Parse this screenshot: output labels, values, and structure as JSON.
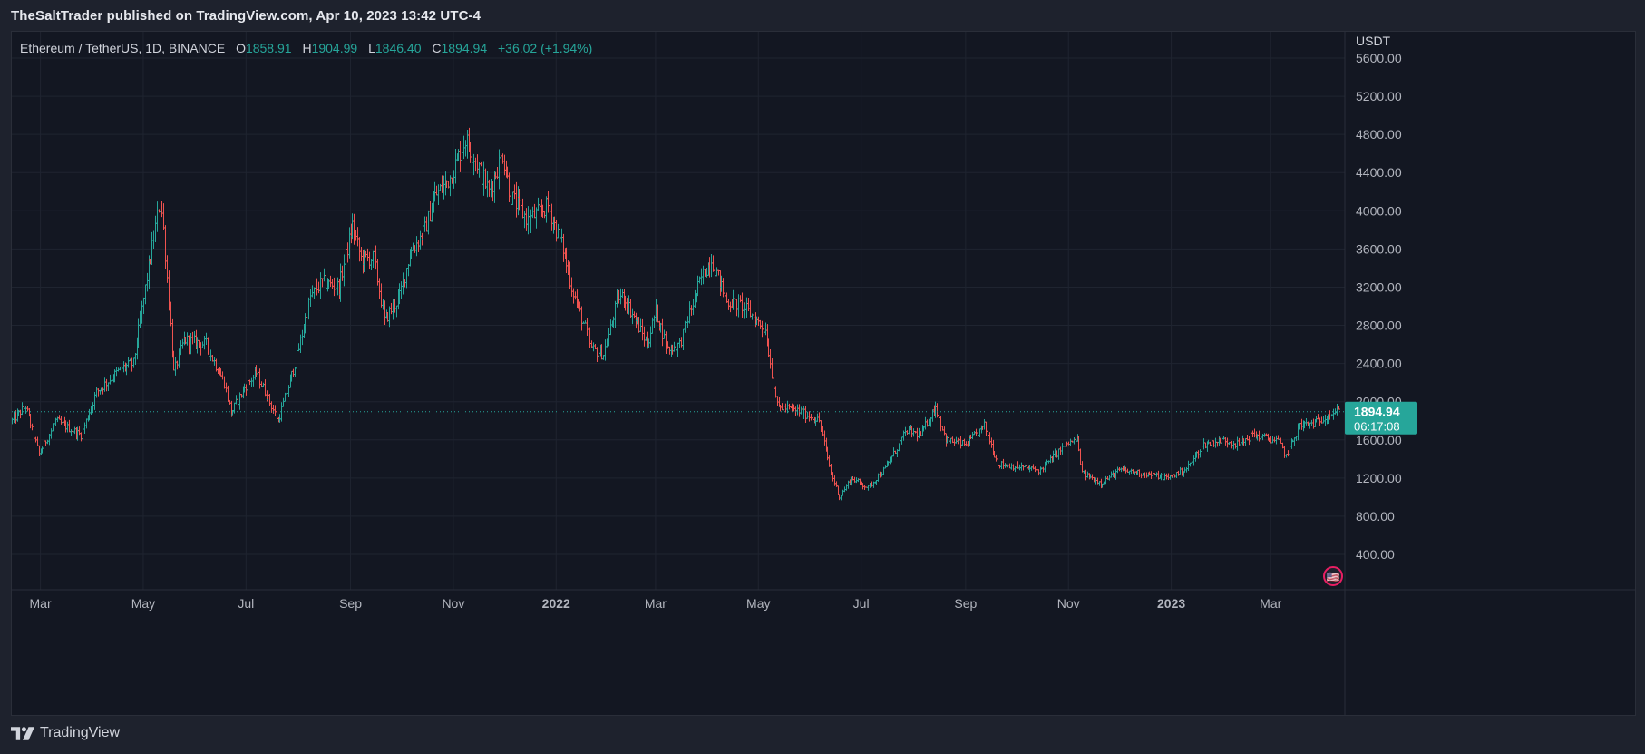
{
  "header": {
    "published_text": "TheSaltTrader published on TradingView.com, Apr 10, 2023 13:42 UTC-4"
  },
  "legend": {
    "symbol": "Ethereum / TetherUS, 1D, BINANCE",
    "open_label": "O",
    "open_value": "1858.91",
    "high_label": "H",
    "high_value": "1904.99",
    "low_label": "L",
    "low_value": "1846.40",
    "close_label": "C",
    "close_value": "1894.94",
    "change": "+36.02 (+1.94%)"
  },
  "footer": {
    "brand": "TradingView"
  },
  "colors": {
    "background": "#131722",
    "up": "#26a69a",
    "down": "#ef5350",
    "grid": "#1f2430",
    "text": "#b2b5be",
    "price_tag": "#26a69a"
  },
  "chart_data": {
    "type": "ohlc",
    "currency": "USDT",
    "price_tag": {
      "value": "1894.94",
      "countdown": "06:17:08"
    },
    "last_price": 1894.94,
    "ylim": [
      0,
      5800
    ],
    "y_ticks": [
      "5600.00",
      "5200.00",
      "4800.00",
      "4400.00",
      "4000.00",
      "3600.00",
      "3200.00",
      "2800.00",
      "2400.00",
      "2000.00",
      "1600.00",
      "1200.00",
      "800.00",
      "400.00"
    ],
    "y_tick_values": [
      5600,
      5200,
      4800,
      4400,
      4000,
      3600,
      3200,
      2800,
      2400,
      2000,
      1600,
      1200,
      800,
      400
    ],
    "x_ticks": [
      {
        "label": "Mar",
        "date": "2021-03-01",
        "bold": false
      },
      {
        "label": "May",
        "date": "2021-05-01",
        "bold": false
      },
      {
        "label": "Jul",
        "date": "2021-07-01",
        "bold": false
      },
      {
        "label": "Sep",
        "date": "2021-09-01",
        "bold": false
      },
      {
        "label": "Nov",
        "date": "2021-11-01",
        "bold": false
      },
      {
        "label": "2022",
        "date": "2022-01-01",
        "bold": true
      },
      {
        "label": "Mar",
        "date": "2022-03-01",
        "bold": false
      },
      {
        "label": "May",
        "date": "2022-05-01",
        "bold": false
      },
      {
        "label": "Jul",
        "date": "2022-07-01",
        "bold": false
      },
      {
        "label": "Sep",
        "date": "2022-09-01",
        "bold": false
      },
      {
        "label": "Nov",
        "date": "2022-11-01",
        "bold": false
      },
      {
        "label": "2023",
        "date": "2023-01-01",
        "bold": true
      },
      {
        "label": "Mar",
        "date": "2023-03-01",
        "bold": false
      }
    ],
    "x_range": [
      "2021-02-12",
      "2023-04-14"
    ],
    "price_path": [
      [
        "2021-02-12",
        1800
      ],
      [
        "2021-02-20",
        1950
      ],
      [
        "2021-02-28",
        1450
      ],
      [
        "2021-03-10",
        1800
      ],
      [
        "2021-03-25",
        1650
      ],
      [
        "2021-04-03",
        2100
      ],
      [
        "2021-04-18",
        2350
      ],
      [
        "2021-04-25",
        2400
      ],
      [
        "2021-05-03",
        3300
      ],
      [
        "2021-05-11",
        4150
      ],
      [
        "2021-05-13",
        3800
      ],
      [
        "2021-05-19",
        2300
      ],
      [
        "2021-05-25",
        2650
      ],
      [
        "2021-06-07",
        2600
      ],
      [
        "2021-06-18",
        2200
      ],
      [
        "2021-06-22",
        1880
      ],
      [
        "2021-06-30",
        2150
      ],
      [
        "2021-07-07",
        2300
      ],
      [
        "2021-07-20",
        1800
      ],
      [
        "2021-07-30",
        2400
      ],
      [
        "2021-08-08",
        3100
      ],
      [
        "2021-08-15",
        3250
      ],
      [
        "2021-08-25",
        3200
      ],
      [
        "2021-09-02",
        3850
      ],
      [
        "2021-09-07",
        3500
      ],
      [
        "2021-09-15",
        3500
      ],
      [
        "2021-09-21",
        2850
      ],
      [
        "2021-09-30",
        3100
      ],
      [
        "2021-10-06",
        3550
      ],
      [
        "2021-10-15",
        3800
      ],
      [
        "2021-10-21",
        4150
      ],
      [
        "2021-10-30",
        4350
      ],
      [
        "2021-11-08",
        4750
      ],
      [
        "2021-11-15",
        4500
      ],
      [
        "2021-11-22",
        4200
      ],
      [
        "2021-11-30",
        4600
      ],
      [
        "2021-12-05",
        4150
      ],
      [
        "2021-12-15",
        3900
      ],
      [
        "2021-12-27",
        4050
      ],
      [
        "2022-01-05",
        3600
      ],
      [
        "2022-01-10",
        3200
      ],
      [
        "2022-01-22",
        2550
      ],
      [
        "2022-01-29",
        2500
      ],
      [
        "2022-02-07",
        3100
      ],
      [
        "2022-02-10",
        3100
      ],
      [
        "2022-02-24",
        2600
      ],
      [
        "2022-03-01",
        2950
      ],
      [
        "2022-03-08",
        2550
      ],
      [
        "2022-03-15",
        2600
      ],
      [
        "2022-03-28",
        3300
      ],
      [
        "2022-04-03",
        3500
      ],
      [
        "2022-04-12",
        3050
      ],
      [
        "2022-04-22",
        3000
      ],
      [
        "2022-05-05",
        2750
      ],
      [
        "2022-05-12",
        1950
      ],
      [
        "2022-05-25",
        1900
      ],
      [
        "2022-06-06",
        1800
      ],
      [
        "2022-06-13",
        1250
      ],
      [
        "2022-06-18",
        1000
      ],
      [
        "2022-06-25",
        1200
      ],
      [
        "2022-07-05",
        1100
      ],
      [
        "2022-07-15",
        1300
      ],
      [
        "2022-07-28",
        1700
      ],
      [
        "2022-08-05",
        1650
      ],
      [
        "2022-08-14",
        1950
      ],
      [
        "2022-08-20",
        1600
      ],
      [
        "2022-09-01",
        1550
      ],
      [
        "2022-09-12",
        1750
      ],
      [
        "2022-09-20",
        1350
      ],
      [
        "2022-10-01",
        1320
      ],
      [
        "2022-10-15",
        1280
      ],
      [
        "2022-10-30",
        1550
      ],
      [
        "2022-11-06",
        1600
      ],
      [
        "2022-11-09",
        1250
      ],
      [
        "2022-11-20",
        1150
      ],
      [
        "2022-12-01",
        1280
      ],
      [
        "2022-12-15",
        1250
      ],
      [
        "2022-12-30",
        1200
      ],
      [
        "2023-01-10",
        1300
      ],
      [
        "2023-01-20",
        1550
      ],
      [
        "2023-02-01",
        1600
      ],
      [
        "2023-02-10",
        1550
      ],
      [
        "2023-02-18",
        1650
      ],
      [
        "2023-02-26",
        1620
      ],
      [
        "2023-03-06",
        1580
      ],
      [
        "2023-03-10",
        1430
      ],
      [
        "2023-03-18",
        1750
      ],
      [
        "2023-03-28",
        1780
      ],
      [
        "2023-04-04",
        1870
      ],
      [
        "2023-04-10",
        1894
      ]
    ],
    "logo_glyph": "🇺🇸"
  }
}
